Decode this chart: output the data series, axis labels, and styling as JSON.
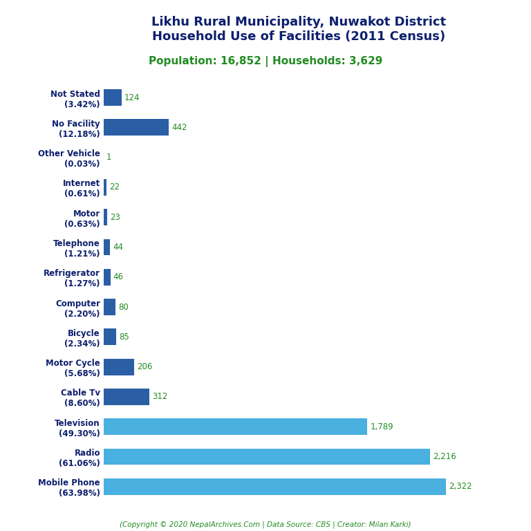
{
  "title_line1": "Likhu Rural Municipality, Nuwakot District",
  "title_line2": "Household Use of Facilities (2011 Census)",
  "subtitle": "Population: 16,852 | Households: 3,629",
  "footer": "(Copyright © 2020 NepalArchives.Com | Data Source: CBS | Creator: Milan Karki)",
  "categories": [
    "Not Stated\n(3.42%)",
    "No Facility\n(12.18%)",
    "Other Vehicle\n(0.03%)",
    "Internet\n(0.61%)",
    "Motor\n(0.63%)",
    "Telephone\n(1.21%)",
    "Refrigerator\n(1.27%)",
    "Computer\n(2.20%)",
    "Bicycle\n(2.34%)",
    "Motor Cycle\n(5.68%)",
    "Cable Tv\n(8.60%)",
    "Television\n(49.30%)",
    "Radio\n(61.06%)",
    "Mobile Phone\n(63.98%)"
  ],
  "values": [
    124,
    442,
    1,
    22,
    23,
    44,
    46,
    80,
    85,
    206,
    312,
    1789,
    2216,
    2322
  ],
  "bar_colors": [
    "#2a5fa5",
    "#2a5fa5",
    "#2a5fa5",
    "#2a5fa5",
    "#2a5fa5",
    "#2a5fa5",
    "#2a5fa5",
    "#2a5fa5",
    "#2a5fa5",
    "#2a5fa5",
    "#2a5fa5",
    "#4ab0e0",
    "#4ab0e0",
    "#4ab0e0"
  ],
  "title_color": "#0d1f6e",
  "subtitle_color": "#228b22",
  "footer_color": "#228b22",
  "value_label_color": "#228b22",
  "ylabel_color": "#0d1f6e",
  "background_color": "#ffffff",
  "figsize": [
    7.68,
    7.68
  ],
  "dpi": 100
}
